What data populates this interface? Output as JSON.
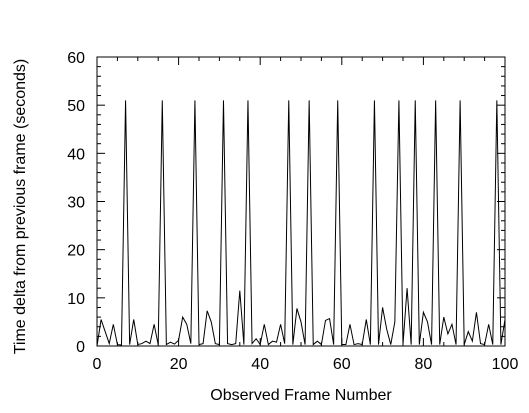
{
  "chart_data": {
    "type": "line",
    "xlabel": "Observed Frame Number",
    "ylabel": "Time delta from previous frame (seconds)",
    "xlim": [
      0,
      100
    ],
    "ylim": [
      0,
      60
    ],
    "xticks": [
      0,
      20,
      40,
      60,
      80,
      100
    ],
    "yticks": [
      0,
      10,
      20,
      30,
      40,
      50,
      60
    ],
    "grid": false,
    "series": [
      {
        "color": "#000000",
        "points": [
          [
            0,
            0
          ],
          [
            1,
            5.5
          ],
          [
            2,
            3
          ],
          [
            3,
            0.5
          ],
          [
            4,
            4.5
          ],
          [
            5,
            0.3
          ],
          [
            6,
            0.2
          ],
          [
            7,
            51
          ],
          [
            8,
            0.3
          ],
          [
            9,
            5.5
          ],
          [
            10,
            0.3
          ],
          [
            11,
            0.5
          ],
          [
            12,
            1
          ],
          [
            13,
            0.5
          ],
          [
            14,
            4.5
          ],
          [
            15,
            0.3
          ],
          [
            16,
            51
          ],
          [
            17,
            0.3
          ],
          [
            18,
            0.8
          ],
          [
            19,
            0.4
          ],
          [
            20,
            1.2
          ],
          [
            21,
            6
          ],
          [
            22,
            4.5
          ],
          [
            23,
            0.5
          ],
          [
            24,
            51
          ],
          [
            25,
            0.3
          ],
          [
            26,
            0.5
          ],
          [
            27,
            7.3
          ],
          [
            28,
            5
          ],
          [
            29,
            0.5
          ],
          [
            30,
            0.3
          ],
          [
            31,
            51
          ],
          [
            32,
            0.5
          ],
          [
            33,
            0.3
          ],
          [
            34,
            0.5
          ],
          [
            35,
            11.5
          ],
          [
            36,
            0.3
          ],
          [
            37,
            51
          ],
          [
            38,
            0.5
          ],
          [
            39,
            1.5
          ],
          [
            40,
            0.3
          ],
          [
            41,
            4.5
          ],
          [
            42,
            0.3
          ],
          [
            43,
            1
          ],
          [
            44,
            0.8
          ],
          [
            45,
            4.5
          ],
          [
            46,
            0.5
          ],
          [
            47,
            51
          ],
          [
            48,
            0.3
          ],
          [
            49,
            7.8
          ],
          [
            50,
            5
          ],
          [
            51,
            0.3
          ],
          [
            52,
            51
          ],
          [
            53,
            0.3
          ],
          [
            54,
            1
          ],
          [
            55,
            0.3
          ],
          [
            56,
            5.3
          ],
          [
            57,
            5.7
          ],
          [
            58,
            0.3
          ],
          [
            59,
            51
          ],
          [
            60,
            0.3
          ],
          [
            61,
            0.3
          ],
          [
            62,
            4.5
          ],
          [
            63,
            0.3
          ],
          [
            64,
            0.5
          ],
          [
            65,
            0.3
          ],
          [
            66,
            5.5
          ],
          [
            67,
            0.3
          ],
          [
            68,
            51
          ],
          [
            69,
            0.3
          ],
          [
            70,
            8
          ],
          [
            71,
            3.5
          ],
          [
            72,
            0.3
          ],
          [
            73,
            5
          ],
          [
            74,
            51
          ],
          [
            75,
            0.3
          ],
          [
            76,
            12
          ],
          [
            77,
            0.3
          ],
          [
            78,
            51
          ],
          [
            79,
            0.3
          ],
          [
            80,
            7
          ],
          [
            81,
            5
          ],
          [
            82,
            0.3
          ],
          [
            83,
            51
          ],
          [
            84,
            0.3
          ],
          [
            85,
            6
          ],
          [
            86,
            2.5
          ],
          [
            87,
            4.5
          ],
          [
            88,
            0.3
          ],
          [
            89,
            51
          ],
          [
            90,
            0.3
          ],
          [
            91,
            3
          ],
          [
            92,
            1
          ],
          [
            93,
            7
          ],
          [
            94,
            0.5
          ],
          [
            95,
            0.3
          ],
          [
            96,
            4.5
          ],
          [
            97,
            0.3
          ],
          [
            98,
            51
          ],
          [
            99,
            0.3
          ],
          [
            100,
            5.5
          ]
        ]
      }
    ]
  }
}
